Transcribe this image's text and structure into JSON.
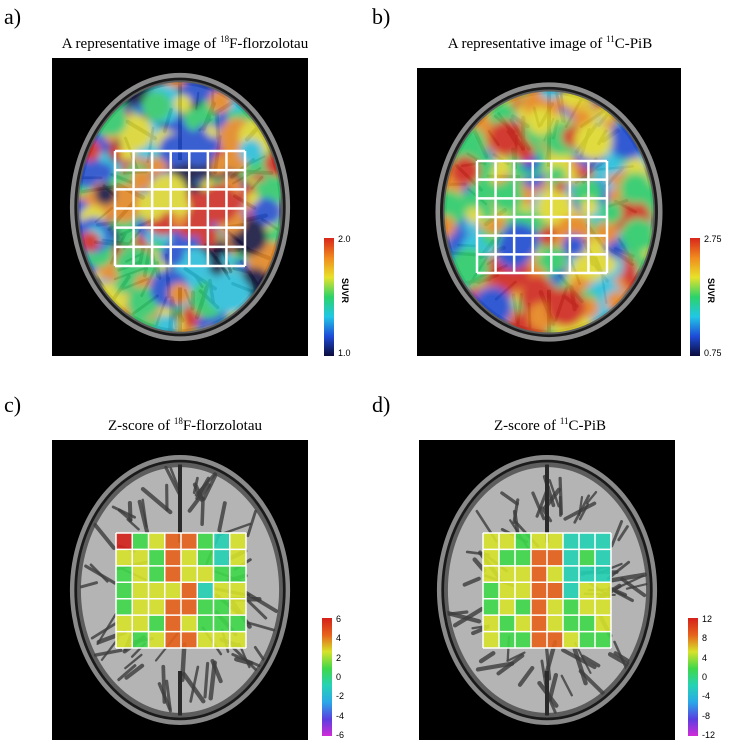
{
  "panels": [
    {
      "letter": "a)",
      "title_pre": "A representative image of ",
      "title_sup": "18",
      "title_post": "F-florzolotau",
      "colorbar": {
        "max": "2.0",
        "min": "1.0",
        "label": "SUVR"
      }
    },
    {
      "letter": "b)",
      "title_pre": "A representative image of ",
      "title_sup": "11",
      "title_post": "C-PiB",
      "colorbar": {
        "max": "2.75",
        "min": "0.75",
        "label": "SUVR"
      }
    },
    {
      "letter": "c)",
      "title_pre": "Z-score of ",
      "title_sup": "18",
      "title_post": "F-florzolotau",
      "colorbar": {
        "ticks": [
          "6",
          "4",
          "2",
          "0",
          "-2",
          "-4",
          "-6"
        ]
      }
    },
    {
      "letter": "d)",
      "title_pre": "Z-score of ",
      "title_sup": "11",
      "title_post": "C-PiB",
      "colorbar": {
        "ticks": [
          "12",
          "8",
          "4",
          "0",
          "-4",
          "-8",
          "-12"
        ]
      }
    }
  ],
  "colors": {
    "pet_scale": [
      "#0b0b3a",
      "#1e4bd8",
      "#22c7e6",
      "#2bd36a",
      "#e8e22a",
      "#f08a1e",
      "#d8261c"
    ],
    "zscore_scale": [
      "#d12bd8",
      "#5a3fe0",
      "#2aa8e8",
      "#25d2b5",
      "#3fd84a",
      "#d7e22a",
      "#e6621c",
      "#d4201a"
    ]
  }
}
